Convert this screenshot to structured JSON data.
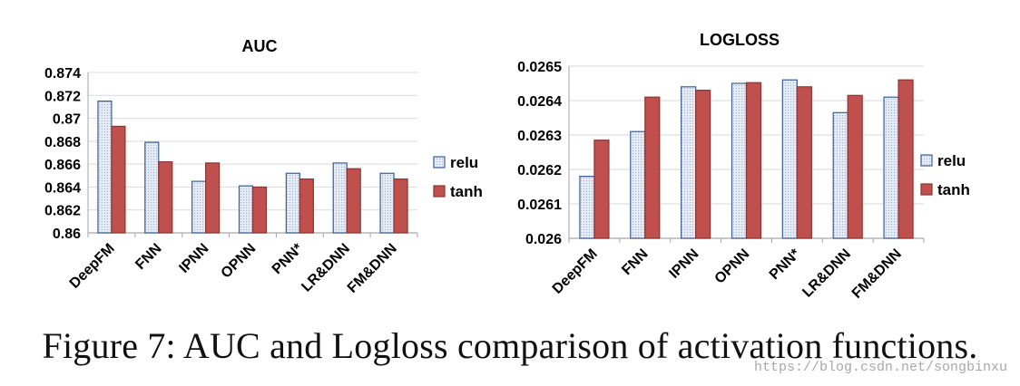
{
  "chart_data": [
    {
      "type": "bar",
      "title": "AUC",
      "categories": [
        "DeepFM",
        "FNN",
        "IPNN",
        "OPNN",
        "PNN*",
        "LR&DNN",
        "FM&DNN"
      ],
      "series": [
        {
          "name": "relu",
          "values": [
            0.8715,
            0.8679,
            0.8645,
            0.8641,
            0.8652,
            0.8661,
            0.8652
          ]
        },
        {
          "name": "tanh",
          "values": [
            0.8693,
            0.8662,
            0.8661,
            0.864,
            0.8647,
            0.8656,
            0.8647
          ]
        }
      ],
      "ylim": [
        0.86,
        0.874
      ],
      "yticks": [
        "0.86",
        "0.862",
        "0.864",
        "0.866",
        "0.868",
        "0.87",
        "0.872",
        "0.874"
      ],
      "grid": true,
      "legend": "right"
    },
    {
      "type": "bar",
      "title": "LOGLOSS",
      "categories": [
        "DeepFM",
        "FNN",
        "IPNN",
        "OPNN",
        "PNN*",
        "LR&DNN",
        "FM&DNN"
      ],
      "series": [
        {
          "name": "relu",
          "values": [
            0.02618,
            0.02631,
            0.02644,
            0.02645,
            0.02646,
            0.026365,
            0.02641
          ]
        },
        {
          "name": "tanh",
          "values": [
            0.026285,
            0.02641,
            0.02643,
            0.026452,
            0.02644,
            0.026415,
            0.02646
          ]
        }
      ],
      "ylim": [
        0.026,
        0.0265
      ],
      "yticks": [
        "0.026",
        "0.0261",
        "0.0262",
        "0.0263",
        "0.0264",
        "0.0265"
      ],
      "grid": true,
      "legend": "right"
    }
  ],
  "caption": "Figure 7: AUC and Logloss comparison of activation functions.",
  "watermark": "https://blog.csdn.net/songbinxu",
  "colors": {
    "relu_edge": "#3d5f8f",
    "relu_fill": "#dfe8f3",
    "tanh_fill": "#c0504d",
    "tanh_edge": "#8c3431",
    "grid": "#d9d9d9"
  }
}
